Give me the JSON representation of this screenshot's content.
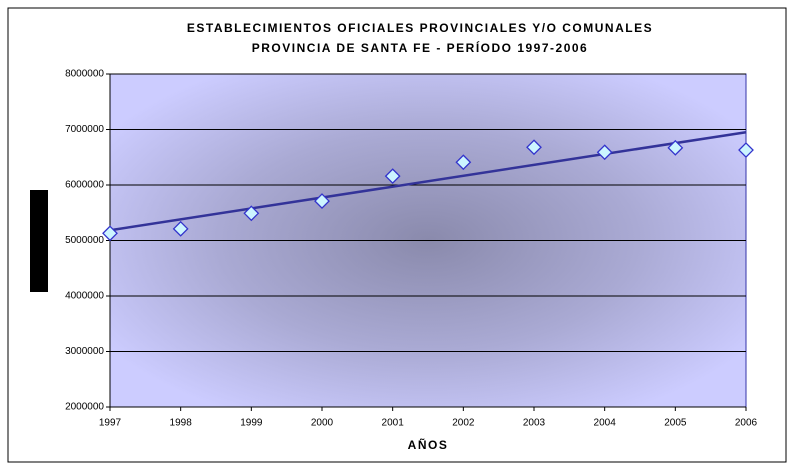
{
  "chart_data": {
    "type": "scatter",
    "title": "ESTABLECIMIENTOS OFICIALES PROVINCIALES Y/O COMUNALES",
    "subtitle": "PROVINCIA DE SANTA FE - PERÍODO 1997-2006",
    "x_label": "AÑOS",
    "x": [
      1997,
      1998,
      1999,
      2000,
      2001,
      2002,
      2003,
      2004,
      2005,
      2006
    ],
    "values": [
      5130000,
      5210000,
      5490000,
      5710000,
      6160000,
      6410000,
      6680000,
      6590000,
      6670000,
      6630000
    ],
    "color": "#ccf5ff",
    "trendline": "linear",
    "xlim": [
      1997,
      2006
    ],
    "xticks": [
      1997,
      1998,
      1999,
      2000,
      2001,
      2002,
      2003,
      2004,
      2005,
      2006
    ],
    "ylim": [
      2000000,
      8000000
    ],
    "yticks": [
      2000000,
      3000000,
      4000000,
      5000000,
      6000000,
      7000000,
      8000000
    ],
    "grid": true
  }
}
